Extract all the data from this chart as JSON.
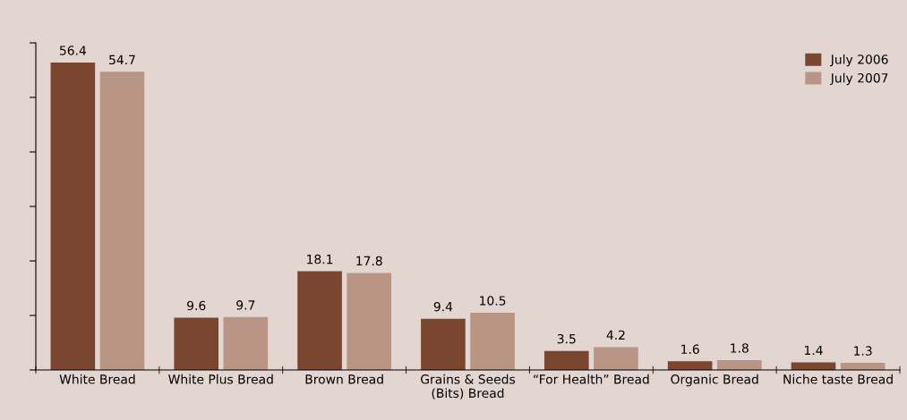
{
  "chart_data": {
    "type": "bar",
    "categories": [
      "White Bread",
      "White Plus Bread",
      "Brown Bread",
      "Grains & Seeds\n(Bits) Bread",
      "“For Health” Bread",
      "Organic Bread",
      "Niche taste Bread"
    ],
    "series": [
      {
        "name": "July 2006",
        "color": "#7a4630",
        "values": [
          56.4,
          9.6,
          18.1,
          9.4,
          3.5,
          1.6,
          1.4
        ]
      },
      {
        "name": "July 2007",
        "color": "#b99585",
        "values": [
          54.7,
          9.7,
          17.8,
          10.5,
          4.2,
          1.8,
          1.3
        ]
      }
    ],
    "ylim": [
      0,
      60
    ],
    "yticks": [
      {
        "value": 0,
        "label": null
      },
      {
        "value": 10,
        "label": null
      },
      {
        "value": 20,
        "label": null
      },
      {
        "value": 30,
        "label": null
      },
      {
        "value": 40,
        "label": null
      },
      {
        "value": 50,
        "label": null
      },
      {
        "value": 60,
        "label": null
      }
    ],
    "tick_labels": "x",
    "data_labels": true,
    "legend": "top right",
    "grid": false
  }
}
